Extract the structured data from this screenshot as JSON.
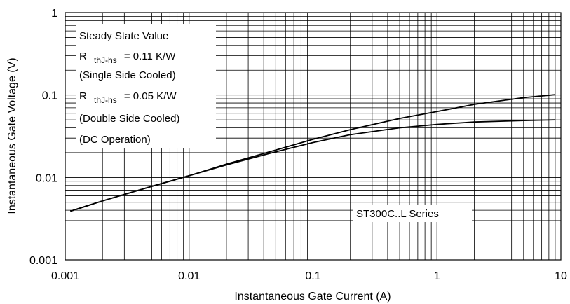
{
  "chart_data": {
    "type": "line",
    "title": "",
    "xlabel": "Instantaneous Gate Current (A)",
    "ylabel": "Instantaneous Gate Voltage (V)",
    "xscale": "log",
    "yscale": "log",
    "xlim": [
      0.001,
      10
    ],
    "ylim": [
      0.001,
      1
    ],
    "grid": true,
    "x_ticks": [
      "0.001",
      "0.01",
      "0.1",
      "1",
      "10"
    ],
    "y_ticks": [
      "0.001",
      "0.01",
      "0.1",
      "1"
    ],
    "legend_lines": {
      "l1": "Steady State Value",
      "l2_r": "R",
      "l2_sub": "thJ-hs",
      "l2_val": "= 0.11 K/W",
      "l3": "(Single Side Cooled)",
      "l4_r": "R",
      "l4_sub": "thJ-hs",
      "l4_val": "= 0.05 K/W",
      "l5": "(Double Side Cooled)",
      "l6": "(DC Operation)"
    },
    "annotation": "ST300C..L Series",
    "series": [
      {
        "x": [
          0.0011,
          0.002,
          0.005,
          0.01,
          0.02,
          0.05,
          0.1,
          0.2,
          0.5,
          1,
          2,
          5,
          9
        ],
        "y": [
          0.0039,
          0.0052,
          0.0078,
          0.0105,
          0.0145,
          0.0215,
          0.029,
          0.038,
          0.052,
          0.063,
          0.077,
          0.093,
          0.101
        ]
      },
      {
        "x": [
          0.0011,
          0.002,
          0.005,
          0.01,
          0.02,
          0.05,
          0.1,
          0.2,
          0.5,
          1,
          2,
          5,
          9
        ],
        "y": [
          0.0039,
          0.0052,
          0.0078,
          0.0105,
          0.0142,
          0.0205,
          0.0265,
          0.033,
          0.04,
          0.044,
          0.047,
          0.049,
          0.05
        ]
      }
    ]
  }
}
